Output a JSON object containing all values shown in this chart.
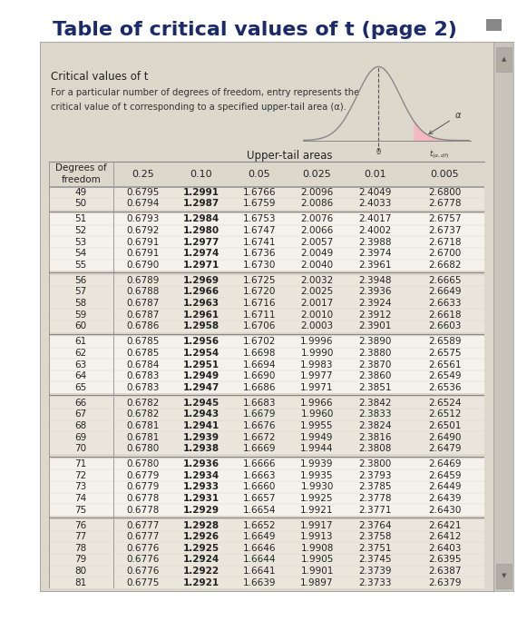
{
  "title": "Table of critical values of t (page 2)",
  "title_fontsize": 16,
  "subtitle1": "Critical values of t",
  "subtitle2": "For a particular number of degrees of freedom, entry represents the",
  "subtitle3": "critical value of t corresponding to a specified upper-tail area (α).",
  "header_upper": "Upper-tail areas",
  "col_headers": [
    "Degrees of\nfreedom",
    "0.25",
    "0.10",
    "0.05",
    "0.025",
    "0.01",
    "0.005"
  ],
  "table_data": [
    [
      49,
      0.6795,
      1.2991,
      1.6766,
      2.0096,
      2.4049,
      2.68
    ],
    [
      50,
      0.6794,
      1.2987,
      1.6759,
      2.0086,
      2.4033,
      2.6778
    ],
    [
      51,
      0.6793,
      1.2984,
      1.6753,
      2.0076,
      2.4017,
      2.6757
    ],
    [
      52,
      0.6792,
      1.298,
      1.6747,
      2.0066,
      2.4002,
      2.6737
    ],
    [
      53,
      0.6791,
      1.2977,
      1.6741,
      2.0057,
      2.3988,
      2.6718
    ],
    [
      54,
      0.6791,
      1.2974,
      1.6736,
      2.0049,
      2.3974,
      2.67
    ],
    [
      55,
      0.679,
      1.2971,
      1.673,
      2.004,
      2.3961,
      2.6682
    ],
    [
      56,
      0.6789,
      1.2969,
      1.6725,
      2.0032,
      2.3948,
      2.6665
    ],
    [
      57,
      0.6788,
      1.2966,
      1.672,
      2.0025,
      2.3936,
      2.6649
    ],
    [
      58,
      0.6787,
      1.2963,
      1.6716,
      2.0017,
      2.3924,
      2.6633
    ],
    [
      59,
      0.6787,
      1.2961,
      1.6711,
      2.001,
      2.3912,
      2.6618
    ],
    [
      60,
      0.6786,
      1.2958,
      1.6706,
      2.0003,
      2.3901,
      2.6603
    ],
    [
      61,
      0.6785,
      1.2956,
      1.6702,
      1.9996,
      2.389,
      2.6589
    ],
    [
      62,
      0.6785,
      1.2954,
      1.6698,
      1.999,
      2.388,
      2.6575
    ],
    [
      63,
      0.6784,
      1.2951,
      1.6694,
      1.9983,
      2.387,
      2.6561
    ],
    [
      64,
      0.6783,
      1.2949,
      1.669,
      1.9977,
      2.386,
      2.6549
    ],
    [
      65,
      0.6783,
      1.2947,
      1.6686,
      1.9971,
      2.3851,
      2.6536
    ],
    [
      66,
      0.6782,
      1.2945,
      1.6683,
      1.9966,
      2.3842,
      2.6524
    ],
    [
      67,
      0.6782,
      1.2943,
      1.6679,
      1.996,
      2.3833,
      2.6512
    ],
    [
      68,
      0.6781,
      1.2941,
      1.6676,
      1.9955,
      2.3824,
      2.6501
    ],
    [
      69,
      0.6781,
      1.2939,
      1.6672,
      1.9949,
      2.3816,
      2.649
    ],
    [
      70,
      0.678,
      1.2938,
      1.6669,
      1.9944,
      2.3808,
      2.6479
    ],
    [
      71,
      0.678,
      1.2936,
      1.6666,
      1.9939,
      2.38,
      2.6469
    ],
    [
      72,
      0.6779,
      1.2934,
      1.6663,
      1.9935,
      2.3793,
      2.6459
    ],
    [
      73,
      0.6779,
      1.2933,
      1.666,
      1.993,
      2.3785,
      2.6449
    ],
    [
      74,
      0.6778,
      1.2931,
      1.6657,
      1.9925,
      2.3778,
      2.6439
    ],
    [
      75,
      0.6778,
      1.2929,
      1.6654,
      1.9921,
      2.3771,
      2.643
    ],
    [
      76,
      0.6777,
      1.2928,
      1.6652,
      1.9917,
      2.3764,
      2.6421
    ],
    [
      77,
      0.6777,
      1.2926,
      1.6649,
      1.9913,
      2.3758,
      2.6412
    ],
    [
      78,
      0.6776,
      1.2925,
      1.6646,
      1.9908,
      2.3751,
      2.6403
    ],
    [
      79,
      0.6776,
      1.2924,
      1.6644,
      1.9905,
      2.3745,
      2.6395
    ],
    [
      80,
      0.6776,
      1.2922,
      1.6641,
      1.9901,
      2.3739,
      2.6387
    ],
    [
      81,
      0.6775,
      1.2921,
      1.6639,
      1.9897,
      2.3733,
      2.6379
    ]
  ],
  "group_boundaries": [
    49,
    51,
    56,
    61,
    66,
    71,
    76,
    82
  ],
  "page_bg": "#ffffff",
  "panel_bg": "#ddd8cc",
  "table_bg": "#eae6dc",
  "header_bg": "#ddd8cc",
  "scrollbar_bg": "#c8c4bc",
  "scrollbar_btn": "#b0aca4",
  "title_color": "#1a2a6c",
  "text_color": "#222222",
  "subtitle_color": "#333333",
  "line_color": "#888888",
  "bold_cols": [
    1
  ]
}
